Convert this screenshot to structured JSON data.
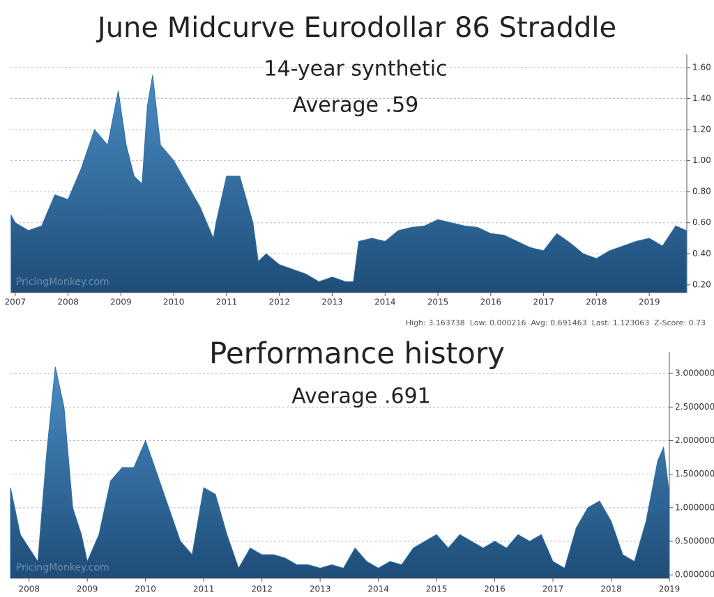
{
  "chart_data": [
    {
      "type": "area",
      "title": "June Midcurve Eurodollar 86 Straddle",
      "subtitle": "14-year synthetic",
      "annotation": "Average .59",
      "watermark": "PricingMonkey.com",
      "stats": "High: 3.163738  Low: 0.000216  Avg: 0.691463  Last: 1.123063  Z-Score: 0.73",
      "color": "#2f6fa5",
      "grid": true,
      "x": [
        2006.92,
        2007.0,
        2007.25,
        2007.5,
        2007.75,
        2008.0,
        2008.25,
        2008.5,
        2008.75,
        2008.95,
        2009.1,
        2009.25,
        2009.4,
        2009.5,
        2009.6,
        2009.75,
        2010.0,
        2010.25,
        2010.5,
        2010.75,
        2010.8,
        2011.0,
        2011.25,
        2011.5,
        2011.6,
        2011.75,
        2012.0,
        2012.25,
        2012.5,
        2012.75,
        2013.0,
        2013.25,
        2013.4,
        2013.5,
        2013.75,
        2014.0,
        2014.25,
        2014.5,
        2014.75,
        2015.0,
        2015.25,
        2015.5,
        2015.75,
        2016.0,
        2016.25,
        2016.5,
        2016.75,
        2017.0,
        2017.25,
        2017.5,
        2017.75,
        2018.0,
        2018.25,
        2018.5,
        2018.75,
        2019.0,
        2019.25,
        2019.5,
        2019.7
      ],
      "values": [
        0.65,
        0.6,
        0.55,
        0.58,
        0.78,
        0.75,
        0.95,
        1.2,
        1.1,
        1.45,
        1.1,
        0.9,
        0.85,
        1.35,
        1.55,
        1.1,
        1.0,
        0.85,
        0.7,
        0.5,
        0.6,
        0.9,
        0.9,
        0.6,
        0.35,
        0.4,
        0.33,
        0.3,
        0.27,
        0.22,
        0.25,
        0.22,
        0.22,
        0.48,
        0.5,
        0.48,
        0.55,
        0.57,
        0.58,
        0.62,
        0.6,
        0.58,
        0.57,
        0.53,
        0.52,
        0.48,
        0.44,
        0.42,
        0.53,
        0.47,
        0.4,
        0.37,
        0.42,
        0.45,
        0.48,
        0.5,
        0.45,
        0.58,
        0.55
      ],
      "xlim": [
        2006.91,
        2019.71
      ],
      "xticks": [
        2007,
        2008,
        2009,
        2010,
        2011,
        2012,
        2013,
        2014,
        2015,
        2016,
        2017,
        2018,
        2019
      ],
      "ylim": [
        0.15,
        1.64
      ],
      "yticks": [
        {
          "value": 0.2,
          "label": "0.20"
        },
        {
          "value": 0.4,
          "label": "0.40"
        },
        {
          "value": 0.6,
          "label": "0.60"
        },
        {
          "value": 0.8,
          "label": "0.80"
        },
        {
          "value": 1.0,
          "label": "1.00"
        },
        {
          "value": 1.2,
          "label": "1.20"
        },
        {
          "value": 1.4,
          "label": "1.40"
        },
        {
          "value": 1.6,
          "label": "1.60"
        }
      ]
    },
    {
      "type": "area",
      "title": "Performance history",
      "subtitle": "Average .691",
      "watermark": "PricingMonkey.com",
      "color": "#2f6fa5",
      "grid": true,
      "x": [
        2007.68,
        2007.85,
        2008.0,
        2008.15,
        2008.3,
        2008.45,
        2008.6,
        2008.75,
        2008.9,
        2009.0,
        2009.2,
        2009.4,
        2009.6,
        2009.8,
        2010.0,
        2010.2,
        2010.4,
        2010.6,
        2010.8,
        2011.0,
        2011.2,
        2011.4,
        2011.6,
        2011.8,
        2012.0,
        2012.2,
        2012.4,
        2012.6,
        2012.8,
        2013.0,
        2013.2,
        2013.4,
        2013.6,
        2013.8,
        2014.0,
        2014.2,
        2014.4,
        2014.6,
        2014.8,
        2015.0,
        2015.2,
        2015.4,
        2015.6,
        2015.8,
        2016.0,
        2016.2,
        2016.4,
        2016.6,
        2016.8,
        2017.0,
        2017.2,
        2017.4,
        2017.6,
        2017.8,
        2018.0,
        2018.2,
        2018.4,
        2018.6,
        2018.8,
        2018.9,
        2019.0
      ],
      "values": [
        1.3,
        0.6,
        0.4,
        0.2,
        1.8,
        3.1,
        2.5,
        1.0,
        0.6,
        0.2,
        0.6,
        1.4,
        1.6,
        1.6,
        2.0,
        1.5,
        1.0,
        0.5,
        0.3,
        1.3,
        1.2,
        0.6,
        0.1,
        0.4,
        0.3,
        0.3,
        0.25,
        0.15,
        0.15,
        0.1,
        0.15,
        0.1,
        0.4,
        0.2,
        0.1,
        0.2,
        0.15,
        0.4,
        0.5,
        0.6,
        0.4,
        0.6,
        0.5,
        0.4,
        0.5,
        0.4,
        0.6,
        0.5,
        0.6,
        0.2,
        0.1,
        0.7,
        1.0,
        1.1,
        0.8,
        0.3,
        0.2,
        0.8,
        1.7,
        1.9,
        1.2
      ],
      "xlim": [
        2007.68,
        2019.0
      ],
      "xticks": [
        2008,
        2009,
        2010,
        2011,
        2012,
        2013,
        2014,
        2015,
        2016,
        2017,
        2018,
        2019
      ],
      "ylim": [
        -0.05,
        3.22
      ],
      "yticks": [
        {
          "value": 0,
          "label": "0.000000"
        },
        {
          "value": 0.5,
          "label": "0.500000"
        },
        {
          "value": 1,
          "label": "1.000000"
        },
        {
          "value": 1.5,
          "label": "1.500000"
        },
        {
          "value": 2,
          "label": "2.000000"
        },
        {
          "value": 2.5,
          "label": "2.500000"
        },
        {
          "value": 3,
          "label": "3.000000"
        }
      ]
    }
  ]
}
